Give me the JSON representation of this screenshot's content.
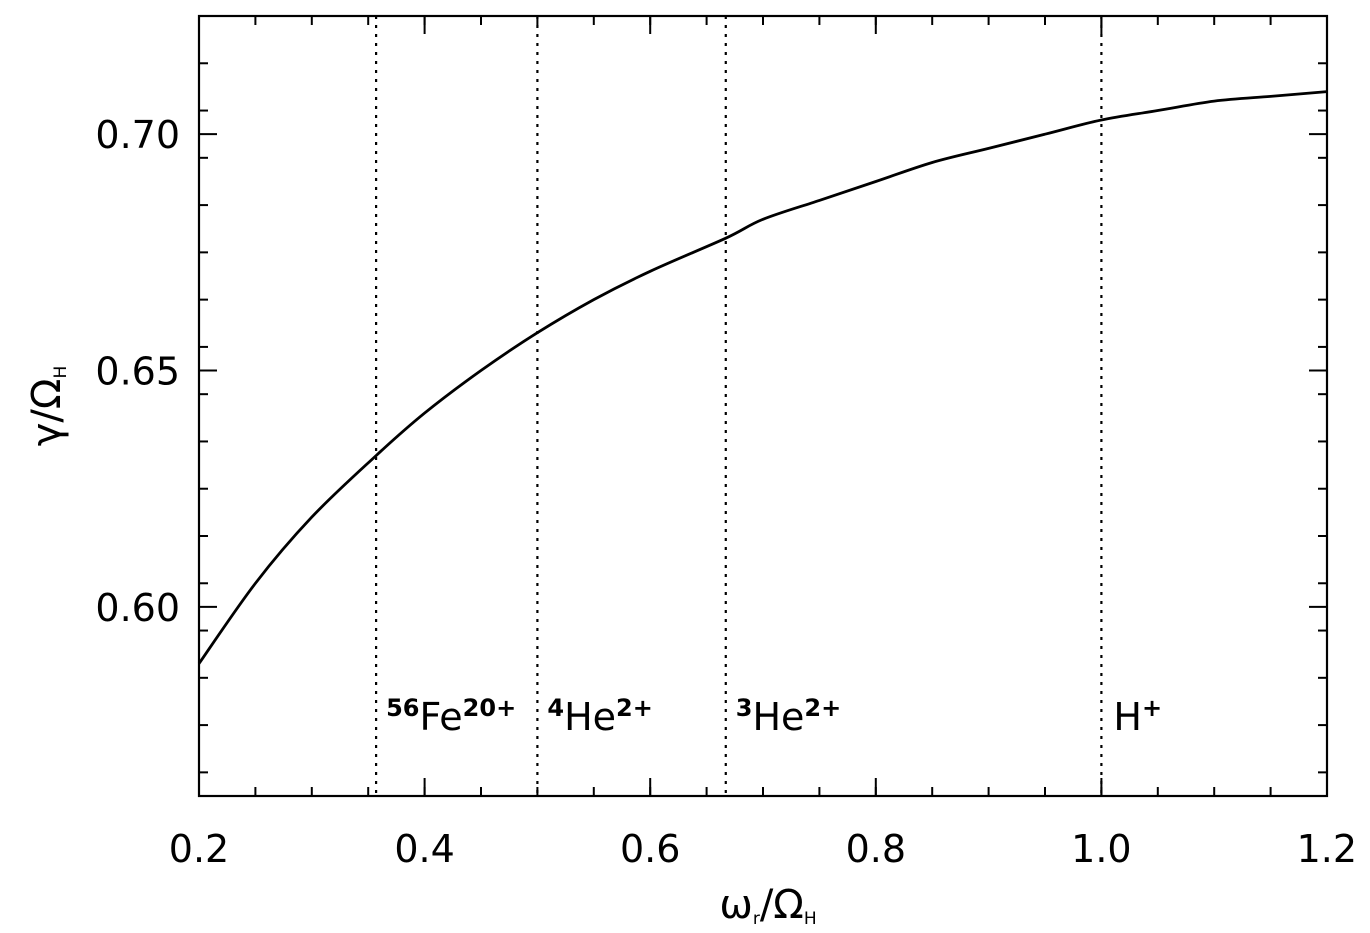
{
  "chart_data": {
    "type": "line",
    "title": "",
    "xlabel": {
      "main": "ω",
      "sub": "r",
      "sep": "/",
      "den": "Ω",
      "den_sub": "H"
    },
    "ylabel": {
      "main": "γ",
      "sep": "/",
      "den": "Ω",
      "den_sub": "H"
    },
    "xlim": [
      0.2,
      1.2
    ],
    "ylim": [
      0.56,
      0.725
    ],
    "x_ticks": [
      "0.2",
      "0.4",
      "0.6",
      "0.8",
      "1.0",
      "1.2"
    ],
    "y_ticks": [
      "0.60",
      "0.65",
      "0.70"
    ],
    "grid": false,
    "series": [
      {
        "x": [
          0.2,
          0.25,
          0.3,
          0.357,
          0.4,
          0.45,
          0.5,
          0.55,
          0.6,
          0.667,
          0.7,
          0.75,
          0.8,
          0.85,
          0.9,
          0.95,
          1.0,
          1.05,
          1.1,
          1.15,
          1.2
        ],
        "y": [
          0.588,
          0.605,
          0.619,
          0.632,
          0.641,
          0.65,
          0.658,
          0.665,
          0.671,
          0.678,
          0.682,
          0.686,
          0.69,
          0.694,
          0.697,
          0.7,
          0.703,
          0.705,
          0.707,
          0.708,
          0.709
        ]
      }
    ],
    "reference_lines": [
      {
        "x": 0.357,
        "label_sup": "56",
        "label_main": "Fe",
        "label_charge": "20+"
      },
      {
        "x": 0.5,
        "label_sup": "4",
        "label_main": "He",
        "label_charge": "2+"
      },
      {
        "x": 0.667,
        "label_sup": "3",
        "label_main": "He",
        "label_charge": "2+"
      },
      {
        "x": 1.0,
        "label_sup": "",
        "label_main": "H",
        "label_charge": "+"
      }
    ]
  }
}
